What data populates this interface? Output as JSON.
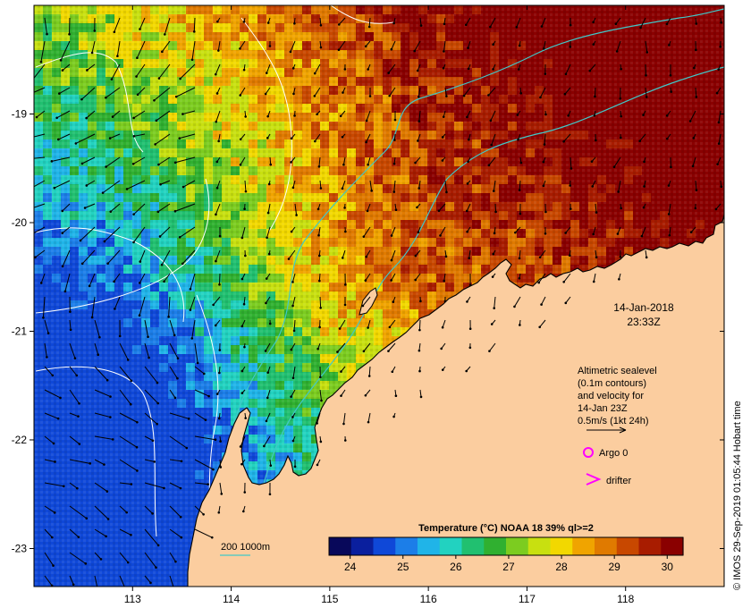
{
  "map": {
    "date": "14-Jan-2018",
    "time": "23:33Z",
    "x_ticks": [
      "113",
      "114",
      "115",
      "116",
      "117",
      "118"
    ],
    "y_ticks": [
      "-19",
      "-20",
      "-21",
      "-22",
      "-23"
    ],
    "x_range": [
      112.0,
      119.0
    ],
    "y_range": [
      -18.0,
      -23.35
    ],
    "colors": {
      "land": "#fbcd9f",
      "coast": "#000000",
      "contour_white": "#ffffff",
      "isobath": "#40c8c8",
      "marker": "#ff00ff"
    }
  },
  "legend": {
    "line1": "Altimetric sealevel",
    "line2": "(0.1m contours)",
    "line3": "and velocity for",
    "line4": "14-Jan 23Z",
    "line5": "0.5m/s (1kt 24h)",
    "argo_label": "Argo 0",
    "drifter_label": "drifter",
    "isobath_label": "200  1000m"
  },
  "colorbar": {
    "title": "Temperature (°C) NOAA 18 39% ql>=2",
    "ticks": [
      "24",
      "25",
      "26",
      "27",
      "28",
      "29",
      "30"
    ],
    "colors": [
      "#08085a",
      "#0a1f9e",
      "#0f48d8",
      "#1c7ee8",
      "#20b4e8",
      "#22d2c0",
      "#21c070",
      "#30b030",
      "#7ccc20",
      "#c8e010",
      "#f2d800",
      "#f0a400",
      "#e07a00",
      "#c84800",
      "#a81c00",
      "#8a0000"
    ]
  },
  "credit": "© IMOS 29-Sep-2019 01:05:44 Hobart time"
}
